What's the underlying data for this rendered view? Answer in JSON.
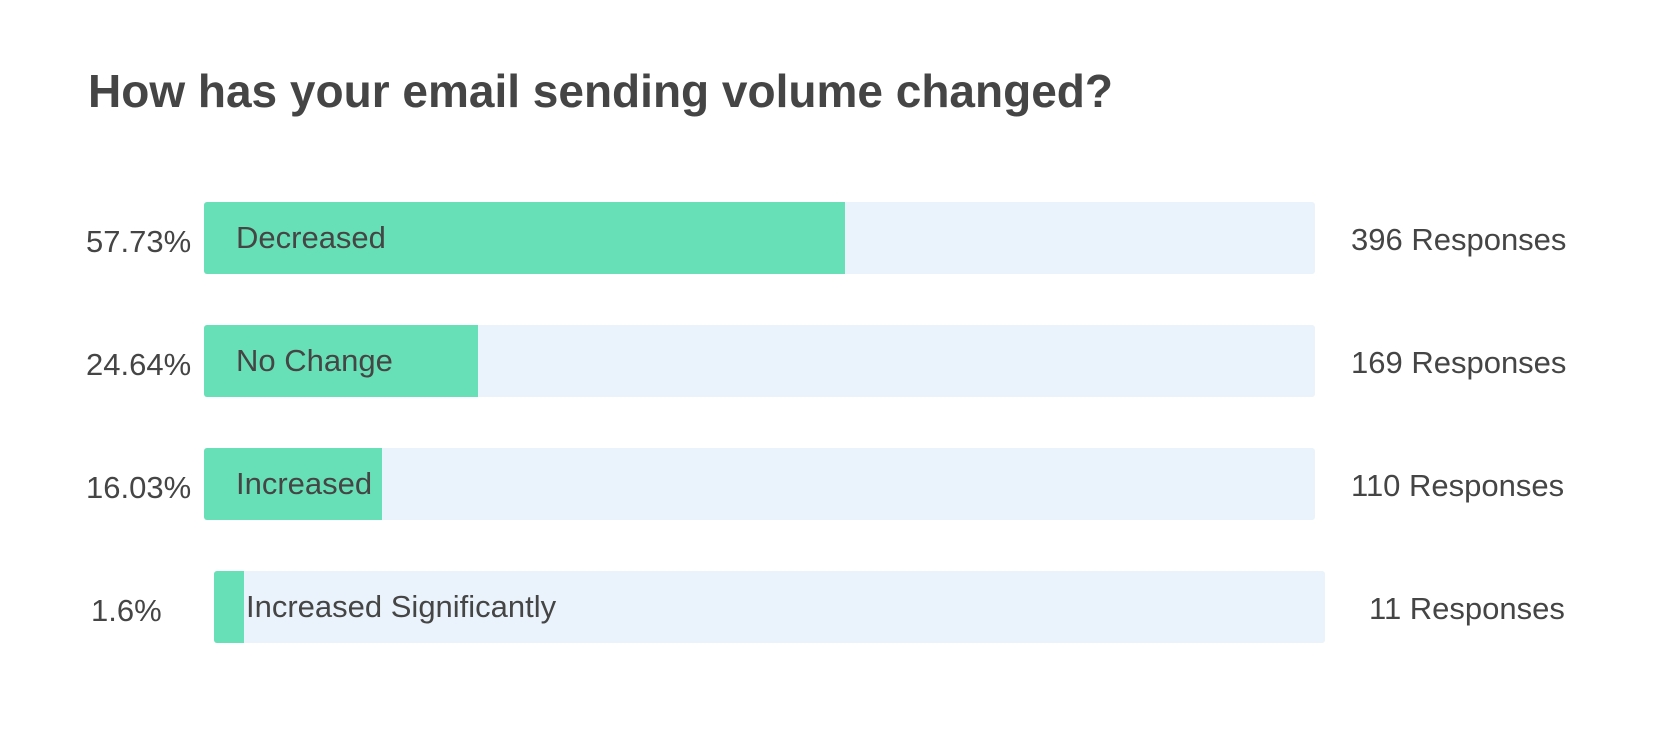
{
  "chart_data": {
    "type": "bar",
    "orientation": "horizontal",
    "title": "How has your email sending volume changed?",
    "categories": [
      "Decreased",
      "No Change",
      "Increased",
      "Increased Significantly"
    ],
    "values": [
      57.73,
      24.64,
      16.03,
      1.6
    ],
    "percent_labels": [
      "57.73%",
      "24.64%",
      "16.03%",
      "1.6%"
    ],
    "responses": [
      396,
      169,
      110,
      11
    ],
    "response_labels": [
      "396 Responses",
      "169 Responses",
      "110 Responses",
      "11 Responses"
    ],
    "xlim": [
      0,
      100
    ],
    "grid": false,
    "legend": "none",
    "colors": {
      "fill": "#68e0b7",
      "track": "#eaf3fb",
      "text": "#454545"
    }
  }
}
